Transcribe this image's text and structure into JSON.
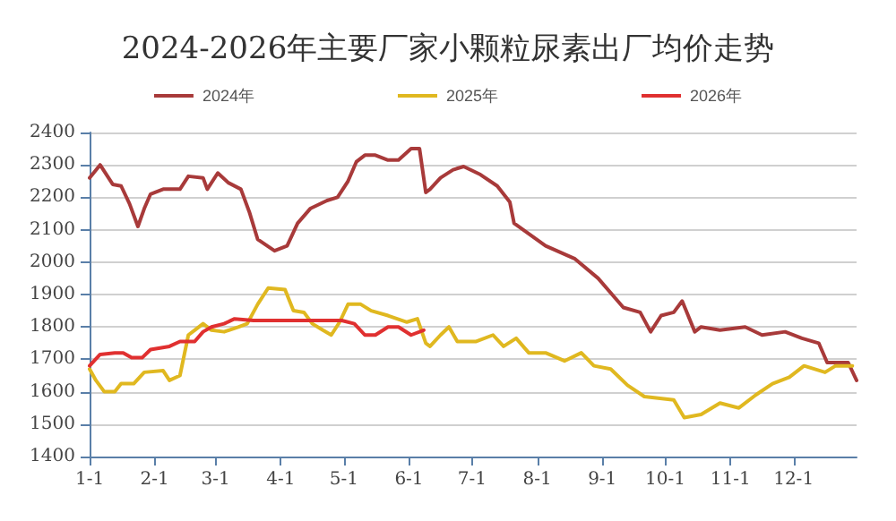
{
  "chart_data": {
    "type": "line",
    "title": "2024-2026年主要厂家小颗粒尿素出厂均价走势",
    "legend": "top",
    "grid": "y",
    "marker": "none",
    "line_style": "solid",
    "xlim": [
      "--01-01",
      "--12-31"
    ],
    "xticks": [
      {
        "value": "--01-01",
        "label": "1-1"
      },
      {
        "value": "--02-01",
        "label": "2-1"
      },
      {
        "value": "--03-01",
        "label": "3-1"
      },
      {
        "value": "--04-01",
        "label": "4-1"
      },
      {
        "value": "--05-01",
        "label": "5-1"
      },
      {
        "value": "--06-01",
        "label": "6-1"
      },
      {
        "value": "--07-01",
        "label": "7-1"
      },
      {
        "value": "--08-01",
        "label": "8-1"
      },
      {
        "value": "--09-01",
        "label": "9-1"
      },
      {
        "value": "--10-01",
        "label": "10-1"
      },
      {
        "value": "--11-01",
        "label": "11-1"
      },
      {
        "value": "--12-01",
        "label": "12-1"
      }
    ],
    "ylim": [
      1400,
      2400
    ],
    "yticks": [
      1400,
      1500,
      1600,
      1700,
      1800,
      1900,
      2000,
      2100,
      2200,
      2300,
      2400
    ],
    "series": [
      {
        "name": "2024年",
        "color": "#a83a3a",
        "x": [
          "--01-01",
          "--01-06",
          "--01-12",
          "--01-16",
          "--01-20",
          "--01-24",
          "--01-27",
          "--01-30",
          "--02-05",
          "--02-13",
          "--02-17",
          "--02-24",
          "--02-26",
          "--03-02",
          "--03-07",
          "--03-13",
          "--03-17",
          "--03-21",
          "--03-29",
          "--04-04",
          "--04-09",
          "--04-15",
          "--04-23",
          "--04-28",
          "--05-03",
          "--05-07",
          "--05-11",
          "--05-16",
          "--05-22",
          "--05-27",
          "--06-02",
          "--06-06",
          "--06-09",
          "--06-11",
          "--06-16",
          "--06-22",
          "--06-27",
          "--07-05",
          "--07-13",
          "--07-19",
          "--07-21",
          "--08-05",
          "--08-19",
          "--08-30",
          "--09-11",
          "--09-19",
          "--09-24",
          "--09-29",
          "--10-05",
          "--10-09",
          "--10-15",
          "--10-18",
          "--10-27",
          "--11-08",
          "--11-16",
          "--11-27",
          "--12-05",
          "--12-13",
          "--12-17",
          "--12-27",
          "--12-31"
        ],
        "values": [
          2260,
          2300,
          2240,
          2235,
          2180,
          2110,
          2165,
          2210,
          2225,
          2225,
          2265,
          2260,
          2225,
          2275,
          2245,
          2225,
          2155,
          2070,
          2035,
          2050,
          2120,
          2165,
          2190,
          2200,
          2250,
          2310,
          2330,
          2330,
          2315,
          2315,
          2350,
          2350,
          2215,
          2225,
          2260,
          2285,
          2295,
          2270,
          2235,
          2185,
          2120,
          2050,
          2010,
          1950,
          1860,
          1845,
          1785,
          1835,
          1845,
          1880,
          1785,
          1800,
          1790,
          1800,
          1775,
          1785,
          1765,
          1750,
          1690,
          1690,
          1635
        ]
      },
      {
        "name": "2025年",
        "color": "#e0b820",
        "x": [
          "--01-01",
          "--01-04",
          "--01-08",
          "--01-13",
          "--01-16",
          "--01-22",
          "--01-27",
          "--02-05",
          "--02-08",
          "--02-13",
          "--02-17",
          "--02-20",
          "--02-24",
          "--02-28",
          "--03-05",
          "--03-12",
          "--03-16",
          "--03-21",
          "--03-26",
          "--04-03",
          "--04-07",
          "--04-12",
          "--04-16",
          "--04-21",
          "--04-25",
          "--04-29",
          "--05-03",
          "--05-09",
          "--05-14",
          "--05-22",
          "--05-31",
          "--06-05",
          "--06-09",
          "--06-11",
          "--06-16",
          "--06-20",
          "--06-24",
          "--07-03",
          "--07-11",
          "--07-16",
          "--07-22",
          "--07-28",
          "--08-05",
          "--08-14",
          "--08-22",
          "--08-28",
          "--09-05",
          "--09-13",
          "--09-21",
          "--10-05",
          "--10-10",
          "--10-18",
          "--10-27",
          "--11-05",
          "--11-13",
          "--11-21",
          "--11-29",
          "--12-06",
          "--12-16",
          "--12-21",
          "--12-29"
        ],
        "values": [
          1670,
          1635,
          1600,
          1600,
          1625,
          1625,
          1660,
          1665,
          1635,
          1650,
          1775,
          1790,
          1810,
          1790,
          1785,
          1800,
          1810,
          1870,
          1920,
          1915,
          1850,
          1845,
          1810,
          1790,
          1775,
          1815,
          1870,
          1870,
          1850,
          1835,
          1815,
          1825,
          1750,
          1740,
          1775,
          1800,
          1755,
          1755,
          1775,
          1740,
          1765,
          1720,
          1720,
          1695,
          1720,
          1680,
          1670,
          1620,
          1585,
          1575,
          1520,
          1530,
          1565,
          1550,
          1590,
          1625,
          1645,
          1680,
          1660,
          1680,
          1680
        ]
      },
      {
        "name": "2026年",
        "color": "#e03030",
        "x": [
          "--01-01",
          "--01-06",
          "--01-13",
          "--01-17",
          "--01-21",
          "--01-26",
          "--01-30",
          "--02-08",
          "--02-13",
          "--02-20",
          "--02-24",
          "--02-28",
          "--03-05",
          "--03-10",
          "--03-19",
          "--03-29",
          "--04-09",
          "--04-20",
          "--04-30",
          "--05-06",
          "--05-11",
          "--05-16",
          "--05-22",
          "--05-27",
          "--06-02",
          "--06-08"
        ],
        "values": [
          1680,
          1715,
          1720,
          1720,
          1705,
          1705,
          1730,
          1740,
          1755,
          1755,
          1785,
          1800,
          1810,
          1825,
          1820,
          1820,
          1820,
          1820,
          1820,
          1810,
          1775,
          1775,
          1800,
          1800,
          1775,
          1790
        ]
      }
    ]
  }
}
